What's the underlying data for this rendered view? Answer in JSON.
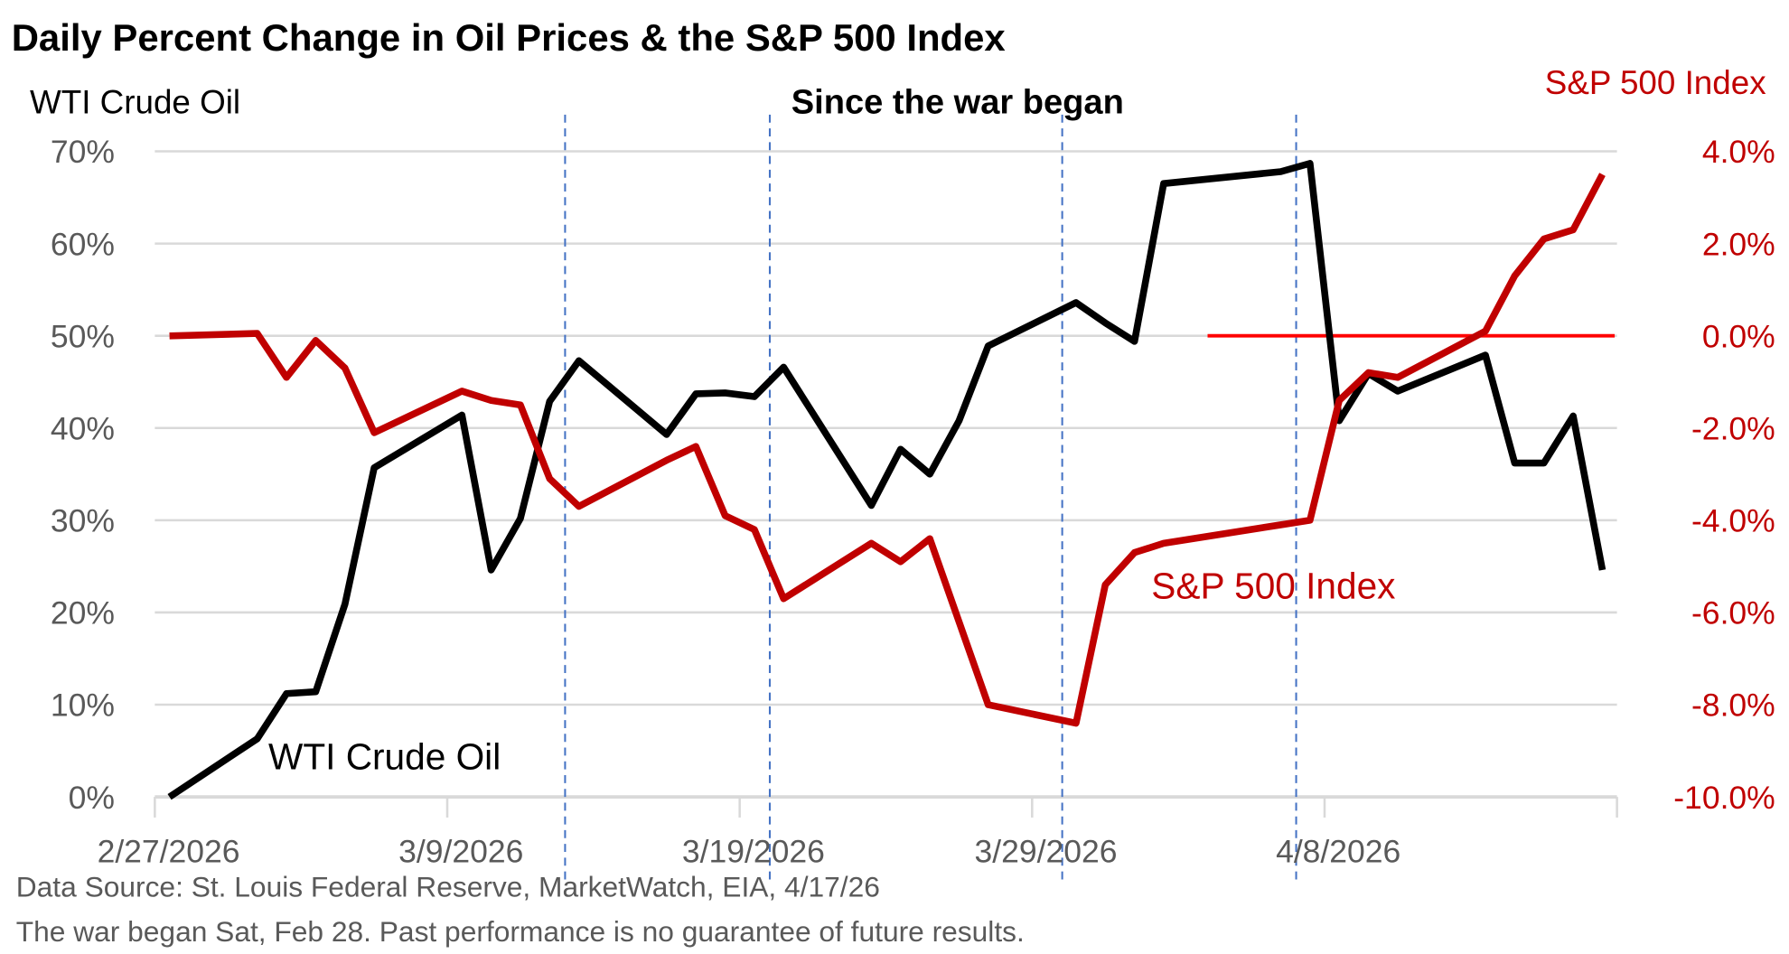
{
  "title": "Daily Percent Change in Oil Prices & the S&P 500 Index",
  "subtitle": "Since the war began",
  "left_axis_title": "WTI Crude Oil",
  "right_axis_title": "S&P 500 Index",
  "source_note": "Data Source: St. Louis Federal Reserve, MarketWatch, EIA, 4/17/26",
  "disclaimer": "The war began Sat, Feb 28. Past performance is no guarantee of future results.",
  "colors": {
    "oil": "#000000",
    "sp500": "#c00000",
    "event_lines": "#4472c4",
    "zero_line": "#ff0000",
    "grid": "#d9d9d9"
  },
  "chart_data": {
    "type": "line",
    "x_type": "date",
    "xlim": [
      "2/27/2026",
      "4/18/2026"
    ],
    "x_tick_labels": [
      "2/27/2026",
      "3/9/2026",
      "3/19/2026",
      "3/29/2026",
      "4/8/2026"
    ],
    "y_left": {
      "label": "WTI Crude Oil",
      "ylim": [
        0,
        70
      ],
      "tick_labels": [
        "0%",
        "10%",
        "20%",
        "30%",
        "40%",
        "50%",
        "60%",
        "70%"
      ]
    },
    "y_right": {
      "label": "S&P 500 Index",
      "ylim": [
        -10,
        4
      ],
      "tick_labels": [
        "-10.0%",
        "-8.0%",
        "-6.0%",
        "-4.0%",
        "-2.0%",
        "0.0%",
        "2.0%",
        "4.0%"
      ]
    },
    "grid": true,
    "event_lines": [
      "3/13/2026",
      "3/20/2026",
      "3/30/2026",
      "4/7/2026"
    ],
    "reference_line": {
      "axis": "right",
      "value": 0,
      "from": "4/4/2026",
      "to": "4/17/2026"
    },
    "series": [
      {
        "name": "WTI Crude Oil",
        "axis": "left",
        "x": [
          "2/27",
          "3/2",
          "3/3",
          "3/4",
          "3/5",
          "3/6",
          "3/9",
          "3/10",
          "3/11",
          "3/12",
          "3/13",
          "3/16",
          "3/17",
          "3/18",
          "3/19",
          "3/20",
          "3/23",
          "3/24",
          "3/25",
          "3/26",
          "3/27",
          "3/30",
          "3/31",
          "4/1",
          "4/2",
          "4/6",
          "4/7",
          "4/8",
          "4/9",
          "4/10",
          "4/13",
          "4/14",
          "4/15",
          "4/16",
          "4/17"
        ],
        "values": [
          0,
          6.3,
          11.2,
          11.4,
          20.9,
          35.7,
          41.4,
          24.6,
          30.2,
          42.9,
          47.3,
          39.3,
          43.7,
          43.8,
          43.4,
          46.6,
          31.6,
          37.7,
          35.0,
          40.8,
          48.9,
          53.6,
          51.4,
          49.4,
          66.5,
          67.8,
          68.7,
          40.8,
          45.9,
          44.0,
          47.9,
          36.2,
          36.2,
          41.3,
          24.6
        ]
      },
      {
        "name": "S&P 500 Index",
        "axis": "right",
        "x": [
          "2/27",
          "3/2",
          "3/3",
          "3/4",
          "3/5",
          "3/6",
          "3/9",
          "3/10",
          "3/11",
          "3/12",
          "3/13",
          "3/16",
          "3/17",
          "3/18",
          "3/19",
          "3/20",
          "3/23",
          "3/24",
          "3/25",
          "3/27",
          "3/30",
          "3/31",
          "4/1",
          "4/2",
          "4/6",
          "4/7",
          "4/8",
          "4/9",
          "4/10",
          "4/13",
          "4/14",
          "4/15",
          "4/16",
          "4/17"
        ],
        "values": [
          0,
          0.05,
          -0.9,
          -0.1,
          -0.7,
          -2.1,
          -1.2,
          -1.4,
          -1.5,
          -3.1,
          -3.7,
          -2.7,
          -2.4,
          -3.9,
          -4.2,
          -5.7,
          -4.5,
          -4.9,
          -4.4,
          -8.0,
          -8.4,
          -5.4,
          -4.7,
          -4.5,
          -4.1,
          -4.0,
          -1.4,
          -0.8,
          -0.9,
          0.1,
          1.3,
          2.1,
          2.3,
          3.5
        ]
      }
    ],
    "annotations": [
      "WTI Crude Oil",
      "S&P 500 Index"
    ]
  }
}
